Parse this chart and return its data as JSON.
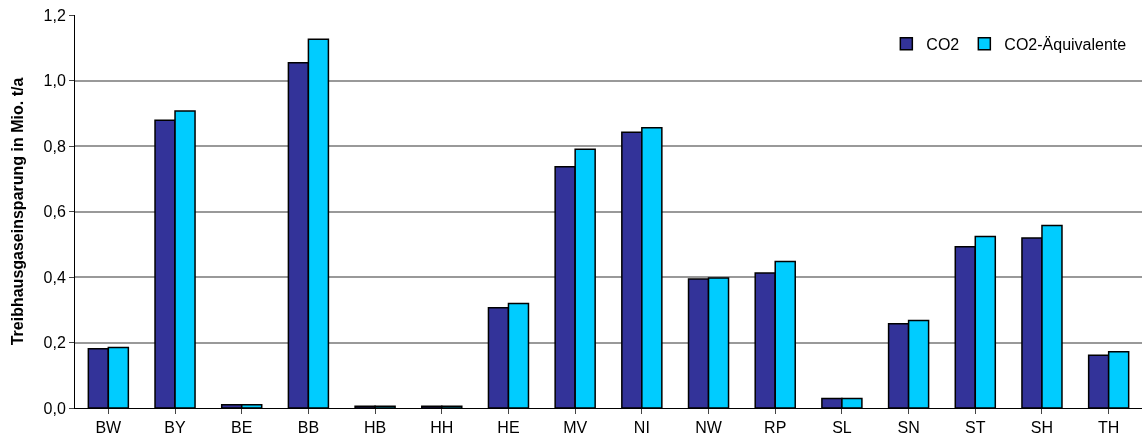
{
  "chart_data": {
    "type": "bar",
    "ylabel": "Treibhausgaseinsparung in Mio. t/a",
    "categories": [
      "BW",
      "BY",
      "BE",
      "BB",
      "HB",
      "HH",
      "HE",
      "MV",
      "NI",
      "NW",
      "RP",
      "SL",
      "SN",
      "ST",
      "SH",
      "TH"
    ],
    "series": [
      {
        "name": "CO2",
        "color": "#333399",
        "values": [
          0.181,
          0.879,
          0.01,
          1.054,
          0.005,
          0.005,
          0.306,
          0.737,
          0.842,
          0.394,
          0.412,
          0.029,
          0.257,
          0.492,
          0.519,
          0.161
        ]
      },
      {
        "name": "CO2-Äquivalente",
        "color": "#00ccff",
        "values": [
          0.185,
          0.907,
          0.01,
          1.126,
          0.005,
          0.005,
          0.319,
          0.79,
          0.856,
          0.397,
          0.447,
          0.029,
          0.267,
          0.524,
          0.557,
          0.172
        ]
      }
    ],
    "ylim": [
      0,
      1.2
    ],
    "yticks": [
      {
        "value": 0,
        "label": "0,0"
      },
      {
        "value": 0.2,
        "label": "0,2"
      },
      {
        "value": 0.4,
        "label": "0,4"
      },
      {
        "value": 0.6,
        "label": "0,6"
      },
      {
        "value": 0.8,
        "label": "0,8"
      },
      {
        "value": 1.0,
        "label": "1,0"
      },
      {
        "value": 1.2,
        "label": "1,2"
      }
    ],
    "grid": "y",
    "legend": "top right"
  }
}
